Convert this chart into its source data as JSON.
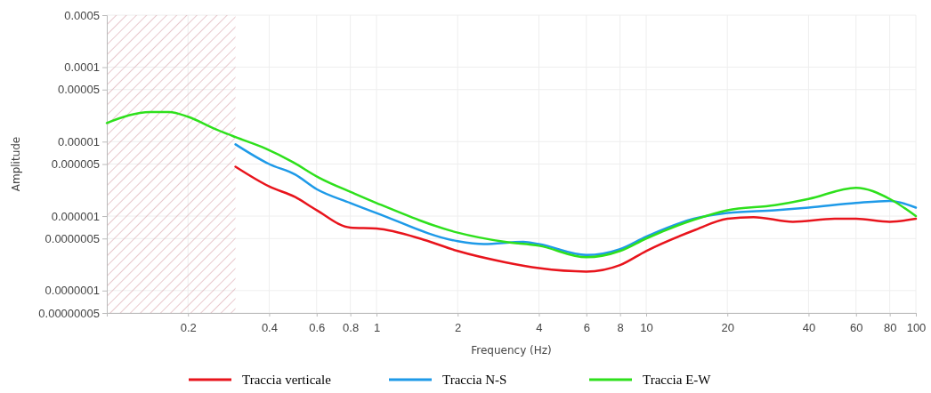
{
  "chart_data": {
    "type": "line",
    "xlabel": "Frequency (Hz)",
    "ylabel": "Amplitude",
    "log": "xy",
    "grid": true,
    "legend": "bottom",
    "line_style": "solid",
    "marker": "none",
    "xlim": [
      0.1,
      100
    ],
    "xticks": [
      0.2,
      0.4,
      0.6,
      0.8,
      1,
      2,
      4,
      6,
      8,
      10,
      20,
      40,
      60,
      80,
      100
    ],
    "ylim": [
      5e-08,
      0.0005
    ],
    "yticks": [
      {
        "value": 0.0005,
        "label": "0.0005"
      },
      {
        "value": 0.0001,
        "label": "0.0001"
      },
      {
        "value": 5e-05,
        "label": "0.00005"
      },
      {
        "value": 1e-05,
        "label": "0.00001"
      },
      {
        "value": 5e-06,
        "label": "0.000005"
      },
      {
        "value": 1e-06,
        "label": "0.000001"
      },
      {
        "value": 5e-07,
        "label": "0.0000005"
      },
      {
        "value": 1e-07,
        "label": "0.0000001"
      },
      {
        "value": 5e-08,
        "label": "0.00000005"
      }
    ],
    "bands": [
      {
        "axis": "x",
        "from": 0.1,
        "to": 0.3,
        "color": "#d8a3ab"
      }
    ],
    "series": [
      {
        "name": "Traccia verticale",
        "color": "#e8141c",
        "x": [
          0.3,
          0.4,
          0.5,
          0.6,
          0.8,
          1,
          1.5,
          2,
          3,
          4,
          6,
          8,
          10,
          15,
          20,
          25,
          35,
          50,
          60,
          80,
          100
        ],
        "values": [
          4.6e-06,
          2.5e-06,
          1.8e-06,
          1.2e-06,
          7e-07,
          6.8e-07,
          4.8e-07,
          3.4e-07,
          2.4e-07,
          2e-07,
          1.8e-07,
          2.2e-07,
          3.4e-07,
          6.4e-07,
          9.2e-07,
          9.7e-07,
          8.4e-07,
          9.2e-07,
          9.2e-07,
          8.4e-07,
          9.2e-07
        ]
      },
      {
        "name": "Traccia N-S",
        "color": "#1e9ae8",
        "x": [
          0.3,
          0.4,
          0.5,
          0.6,
          0.8,
          1,
          2,
          2.5,
          3.5,
          4,
          6,
          8,
          10,
          15,
          20,
          30,
          40,
          60,
          80,
          100
        ],
        "values": [
          9.2e-06,
          5e-06,
          3.6e-06,
          2.3e-06,
          1.5e-06,
          1.1e-06,
          4.6e-07,
          4.2e-07,
          4.5e-07,
          4.2e-07,
          3e-07,
          3.6e-07,
          5.3e-07,
          9.2e-07,
          1.1e-06,
          1.2e-06,
          1.3e-06,
          1.5e-06,
          1.6e-06,
          1.3e-06
        ]
      },
      {
        "name": "Traccia E-W",
        "color": "#2ee01c",
        "x": [
          0.1,
          0.145,
          0.17,
          0.2,
          0.25,
          0.3,
          0.39,
          0.49,
          0.61,
          0.83,
          1,
          2,
          3,
          4,
          6,
          8,
          10,
          15,
          20,
          30,
          40,
          60,
          80,
          100
        ],
        "values": [
          1.78e-05,
          2.5e-05,
          2.5e-05,
          2.16e-05,
          1.5e-05,
          1.15e-05,
          8e-06,
          5.3e-06,
          3.3e-06,
          2e-06,
          1.5e-06,
          6e-07,
          4.5e-07,
          4e-07,
          2.8e-07,
          3.4e-07,
          5e-07,
          8.9e-07,
          1.2e-06,
          1.4e-06,
          1.7e-06,
          2.4e-06,
          1.7e-06,
          1e-06
        ]
      }
    ]
  }
}
